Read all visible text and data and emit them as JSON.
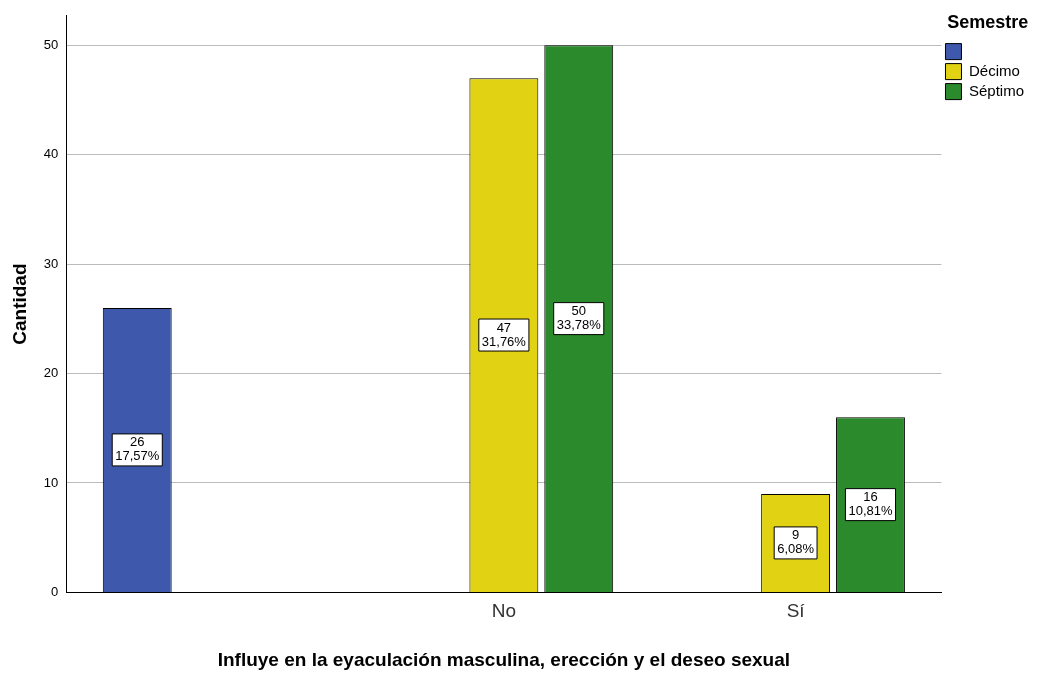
{
  "chart_data": {
    "type": "bar",
    "xlabel": "Influye en la eyaculación masculina, erección y el deseo sexual",
    "ylabel": "Cantidad",
    "legend_title": "Semestre",
    "legend": "top right",
    "grid": "y",
    "categories": [
      null,
      "No",
      "Sí"
    ],
    "ylim": [
      0,
      52.7
    ],
    "yticks": [
      0,
      10,
      20,
      30,
      40,
      50
    ],
    "series": [
      {
        "color": "#3e58ac",
        "values": [
          26,
          null,
          null
        ],
        "value_labels": [
          "26\n17,57%",
          null,
          null
        ]
      },
      {
        "name": "Décimo",
        "color": "#e1d314",
        "values": [
          null,
          47,
          9
        ],
        "value_labels": [
          null,
          "47\n31,76%",
          "9\n6,08%"
        ]
      },
      {
        "name": "Séptimo",
        "color": "#2b8a2b",
        "values": [
          null,
          50,
          16
        ],
        "value_labels": [
          null,
          "50\n33,78%",
          "16\n10,81%"
        ]
      }
    ]
  }
}
